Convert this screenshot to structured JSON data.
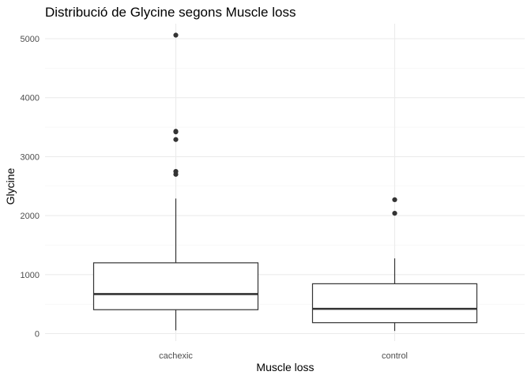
{
  "chart_data": {
    "type": "box",
    "title": "Distribució de Glycine segons Muscle loss",
    "xlabel": "Muscle loss",
    "ylabel": "Glycine",
    "ylim": [
      -100,
      5300
    ],
    "yticks": [
      0,
      1000,
      2000,
      3000,
      4000,
      5000
    ],
    "grid": true,
    "categories": [
      "cachexic",
      "control"
    ],
    "boxes": [
      {
        "category": "cachexic",
        "whisker_low": 55,
        "q1": 405,
        "median": 670,
        "q3": 1200,
        "whisker_high": 2290,
        "outliers": [
          2700,
          2750,
          3290,
          3420,
          3430,
          5060
        ]
      },
      {
        "category": "control",
        "whisker_low": 45,
        "q1": 185,
        "median": 420,
        "q3": 845,
        "whisker_high": 1275,
        "outliers": [
          2040,
          2270
        ]
      }
    ]
  }
}
